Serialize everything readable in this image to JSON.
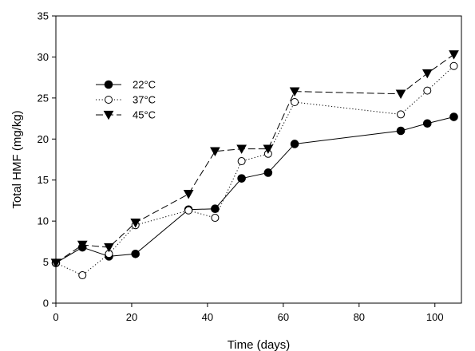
{
  "chart_data": {
    "type": "line",
    "title": "",
    "xlabel": "Time (days)",
    "ylabel": "Total HMF (mg/kg)",
    "xlim": [
      0,
      107
    ],
    "ylim": [
      0,
      35
    ],
    "xticks": [
      0,
      20,
      40,
      60,
      80,
      100
    ],
    "yticks": [
      0,
      5,
      10,
      15,
      20,
      25,
      30,
      35
    ],
    "grid": false,
    "legend_position": "upper-left",
    "series": [
      {
        "name": "22°C",
        "marker": "filled-circle",
        "line_style": "solid",
        "color": "#000000",
        "x": [
          0,
          7,
          14,
          21,
          35,
          42,
          49,
          56,
          63,
          91,
          98,
          105
        ],
        "y": [
          4.9,
          6.8,
          5.7,
          6.0,
          11.4,
          11.5,
          15.2,
          15.9,
          19.4,
          21.0,
          21.9,
          22.7
        ]
      },
      {
        "name": "37°C",
        "marker": "open-circle",
        "line_style": "dotted",
        "color": "#000000",
        "x": [
          0,
          7,
          14,
          21,
          35,
          42,
          49,
          56,
          63,
          91,
          98,
          105
        ],
        "y": [
          4.9,
          3.4,
          6.0,
          9.5,
          11.3,
          10.4,
          17.3,
          18.2,
          24.5,
          23.0,
          25.9,
          28.9
        ]
      },
      {
        "name": "45°C",
        "marker": "filled-triangle-down",
        "line_style": "dashed",
        "color": "#000000",
        "x": [
          0,
          7,
          14,
          21,
          35,
          42,
          49,
          56,
          63,
          91,
          98,
          105
        ],
        "y": [
          4.9,
          7.1,
          6.8,
          9.8,
          13.3,
          18.5,
          18.8,
          18.8,
          25.8,
          25.5,
          28.0,
          30.3
        ]
      }
    ]
  }
}
